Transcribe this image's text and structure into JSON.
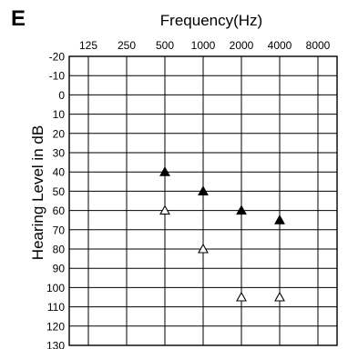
{
  "panel_label": "E",
  "chart_data": {
    "type": "scatter",
    "title": "Frequency(Hz)",
    "xlabel": "",
    "ylabel": "Hearing Level in dB",
    "x_ticks": [
      "125",
      "250",
      "500",
      "1000",
      "2000",
      "4000",
      "8000"
    ],
    "y_ticks": [
      "-20",
      "-10",
      "0",
      "10",
      "20",
      "30",
      "40",
      "50",
      "60",
      "70",
      "80",
      "90",
      "100",
      "110",
      "120",
      "130"
    ],
    "ylim": [
      -20,
      130
    ],
    "y_inverted": true,
    "x_scale": "log2",
    "grid": true,
    "legend": "none",
    "series": [
      {
        "marker": "filled-triangle",
        "color": "#000000",
        "points": [
          {
            "x": 500,
            "y": 40
          },
          {
            "x": 1000,
            "y": 50
          },
          {
            "x": 2000,
            "y": 60
          },
          {
            "x": 4000,
            "y": 65
          }
        ]
      },
      {
        "marker": "open-triangle",
        "color": "#000000",
        "points": [
          {
            "x": 500,
            "y": 60
          },
          {
            "x": 1000,
            "y": 80
          },
          {
            "x": 2000,
            "y": 105
          },
          {
            "x": 4000,
            "y": 105
          }
        ]
      }
    ]
  }
}
